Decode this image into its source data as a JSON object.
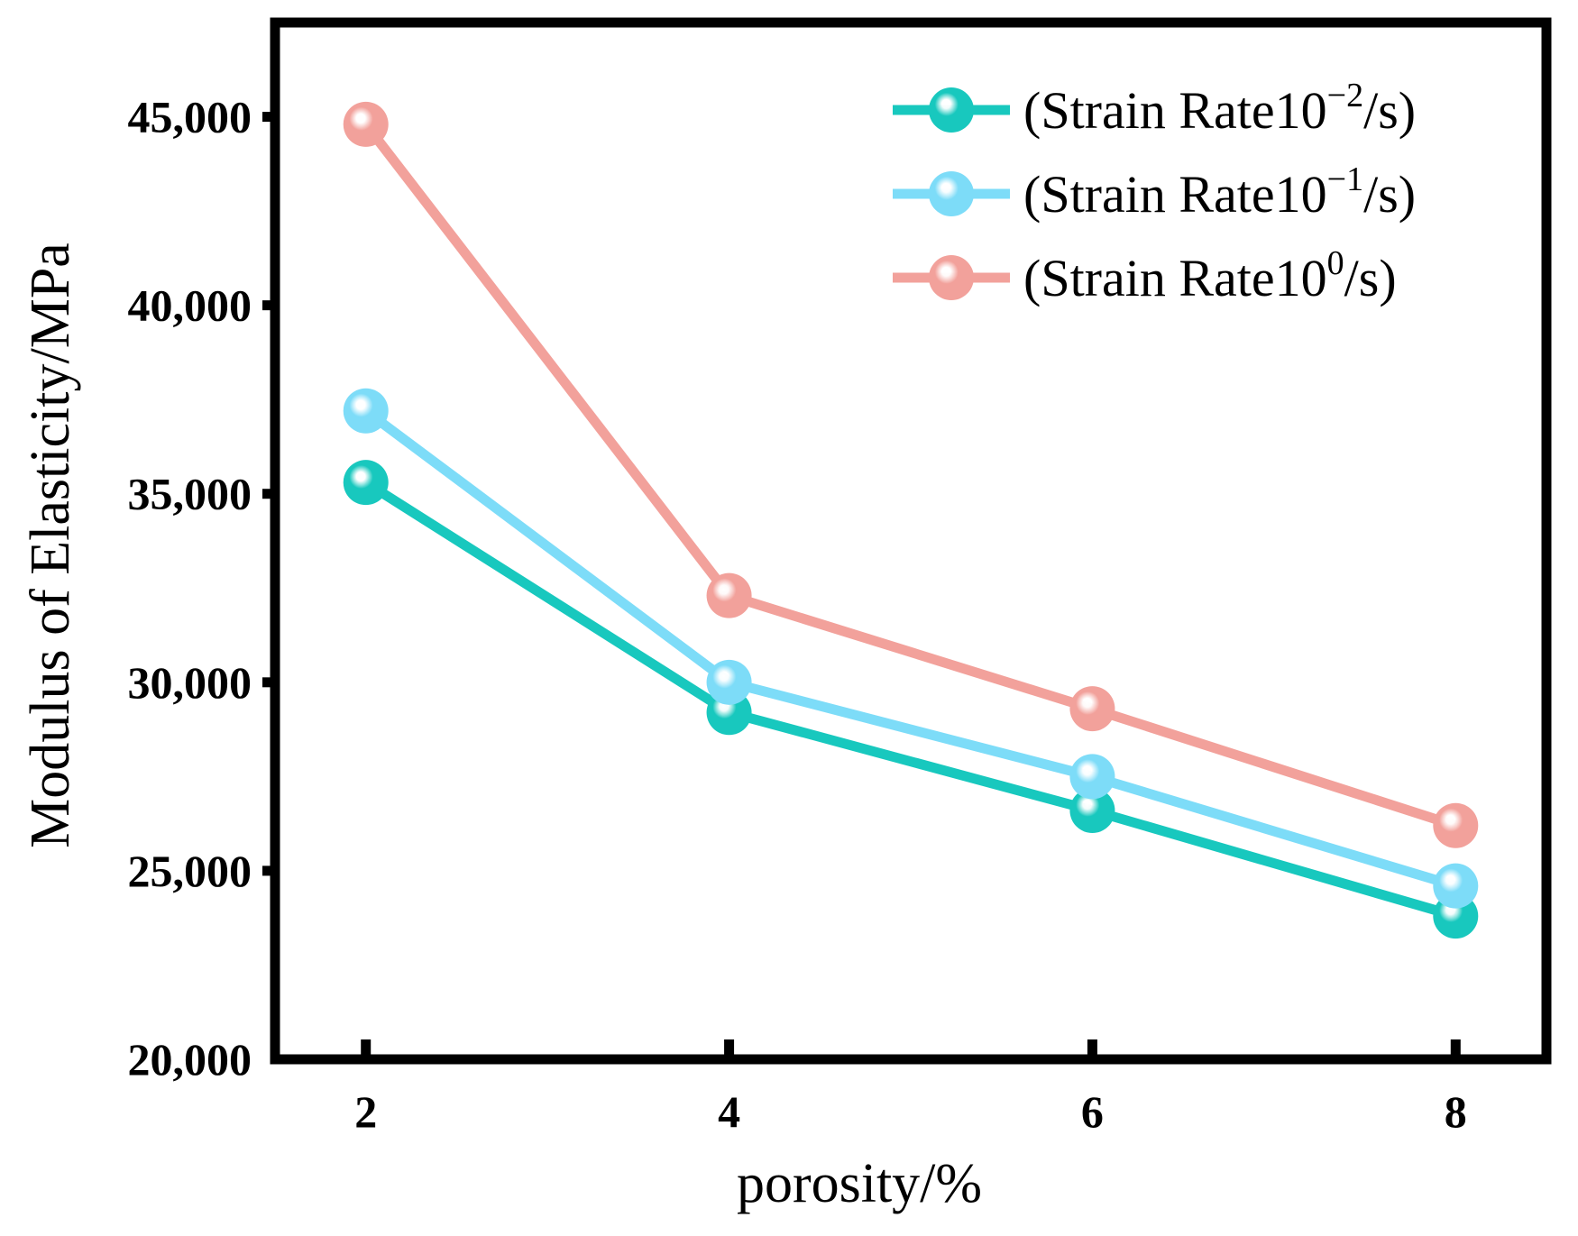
{
  "chart_data": {
    "type": "line",
    "title": "",
    "xlabel": "porosity/%",
    "ylabel": "Modulus of Elasticity/MPa",
    "x": [
      2,
      4,
      6,
      8
    ],
    "x_tick_labels": [
      "2",
      "4",
      "6",
      "8"
    ],
    "xlim": [
      1.5,
      8.5
    ],
    "ylim": [
      20000,
      47500
    ],
    "y_ticks": [
      20000,
      25000,
      30000,
      35000,
      40000,
      45000
    ],
    "y_tick_labels": [
      "20,000",
      "25,000",
      "30,000",
      "35,000",
      "40,000",
      "45,000"
    ],
    "grid": false,
    "legend_position": "top-right",
    "series": [
      {
        "name": "(Strain Rate10",
        "exponent": "−2",
        "unit": "/s)",
        "color": "#18c8be",
        "values": [
          35300,
          29200,
          26600,
          23800
        ]
      },
      {
        "name": "(Strain Rate10",
        "exponent": "−1",
        "unit": "/s)",
        "color": "#7ddcf8",
        "values": [
          37200,
          30000,
          27500,
          24600
        ]
      },
      {
        "name": "(Strain Rate10",
        "exponent": "0",
        "unit": "/s)",
        "color": "#f2a19b",
        "values": [
          44800,
          32300,
          29300,
          26200
        ]
      }
    ]
  }
}
